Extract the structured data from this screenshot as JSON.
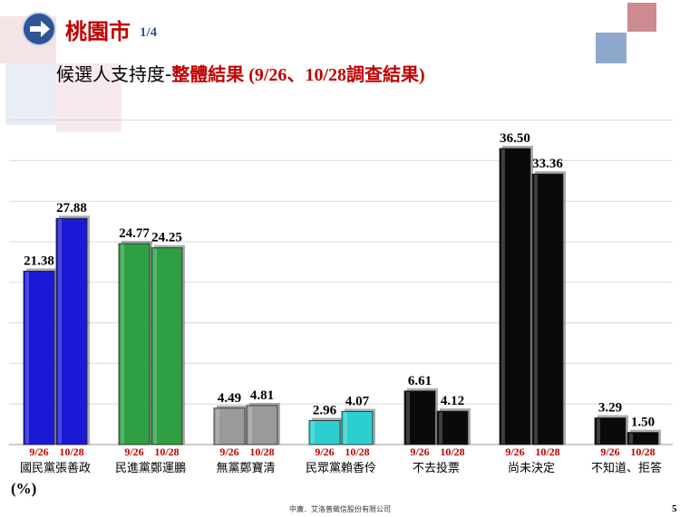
{
  "header": {
    "city": "桃園市",
    "page_fraction": "1/4",
    "subtitle_main": "候選人支持度-",
    "subtitle_emph": "整體結果",
    "subtitle_paren_open": " (9/26",
    "subtitle_sep": "、",
    "subtitle_date2": "10/28",
    "subtitle_survey": "調查結果",
    "subtitle_paren_close": ")"
  },
  "unit_label": "(%)",
  "footer": {
    "credit": "中廣．艾洛普徵信股份有限公司",
    "page_number": "5"
  },
  "chart_data": {
    "type": "bar",
    "categories": [
      "國民黨張善政",
      "民進黨鄭運鵬",
      "無黨鄭寶清",
      "民眾黨賴香伶",
      "不去投票",
      "尚未決定",
      "不知道、拒答"
    ],
    "series": [
      {
        "name": "9/26",
        "values": [
          21.38,
          24.77,
          4.49,
          2.96,
          6.61,
          36.5,
          3.29
        ]
      },
      {
        "name": "10/28",
        "values": [
          27.88,
          24.25,
          4.81,
          4.07,
          4.12,
          33.36,
          1.5
        ]
      }
    ],
    "value_labels": [
      [
        "21.38",
        "27.88"
      ],
      [
        "24.77",
        "24.25"
      ],
      [
        "4.49",
        "4.81"
      ],
      [
        "2.96",
        "4.07"
      ],
      [
        "6.61",
        "4.12"
      ],
      [
        "36.50",
        "33.36"
      ],
      [
        "3.29",
        "1.50"
      ]
    ],
    "group_colors": [
      "#1a1ad6",
      "#2ea043",
      "#9a9a9a",
      "#2ccfd0",
      "#0a0a0a",
      "#0a0a0a",
      "#0a0a0a"
    ],
    "tick_color": "#c00000",
    "ylabel": "(%)",
    "ylim": [
      0,
      40
    ],
    "grid": true
  }
}
